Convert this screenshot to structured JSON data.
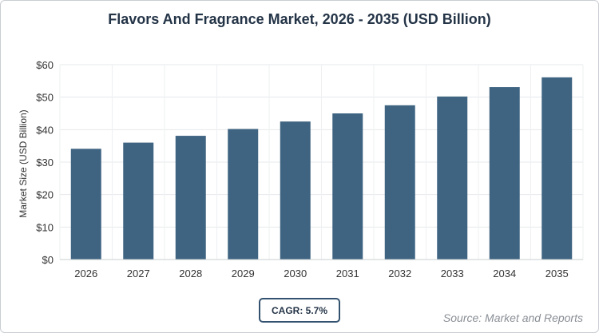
{
  "chart_data": {
    "type": "bar",
    "title": "Flavors And Fragrance Market, 2026 - 2035 (USD Billion)",
    "xlabel": "",
    "ylabel": "Market Size (USD Billion)",
    "categories": [
      "2026",
      "2027",
      "2028",
      "2029",
      "2030",
      "2031",
      "2032",
      "2033",
      "2034",
      "2035"
    ],
    "values": [
      34.1,
      36.0,
      38.1,
      40.2,
      42.5,
      45.0,
      47.5,
      50.2,
      53.1,
      56.1
    ],
    "ylim": [
      0,
      60
    ],
    "yticks": [
      0,
      10,
      20,
      30,
      40,
      50,
      60
    ],
    "ytick_labels": [
      "$0",
      "$10",
      "$20",
      "$30",
      "$40",
      "$50",
      "$60"
    ],
    "grid": true,
    "bar_color": "#3f6482"
  },
  "cagr_label": "CAGR: 5.7%",
  "source_label": "Source: Market and Reports"
}
